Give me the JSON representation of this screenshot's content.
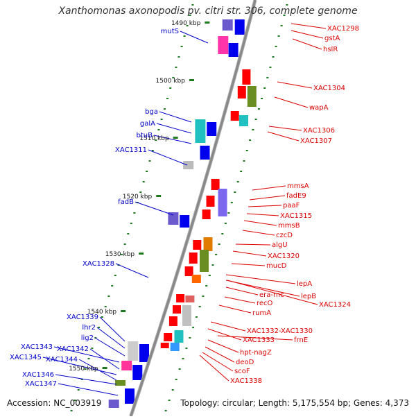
{
  "title": "Xanthomonas axonopodis pv. citri str. 306, complete genome",
  "footer": {
    "accession": "Accession: NC_003919",
    "topology": "Topology: circular; Length: 5,175,554 bp; Genes: 4,373"
  },
  "colors": {
    "backbone": "#888888",
    "tick": "#1f7a1f",
    "left_label": "#0000cc",
    "right_label": "#dd0000",
    "right_gene": "#ff0000",
    "left_gene": "#0000ee"
  },
  "kbp_ticks": [
    "1490 kbp",
    "1500 kbp",
    "1510 kbp",
    "1520 kbp",
    "1530 kbp",
    "1540 kbp",
    "1550 kbp"
  ],
  "left_genes": [
    "mutS",
    "bga",
    "galA",
    "btuB",
    "XAC1311",
    "fadB",
    "XAC1328",
    "XAC1339",
    "lhr2",
    "lig2",
    "XAC1343",
    "XAC1342",
    "XAC1345",
    "XAC1344",
    "XAC1346",
    "XAC1347"
  ],
  "right_genes": [
    "XAC1298",
    "gstA",
    "hslR",
    "XAC1304",
    "wapA",
    "XAC1306",
    "XAC1307",
    "mmsA",
    "fadE9",
    "paaF",
    "XAC1315",
    "mmsB",
    "czcD",
    "algU",
    "XAC1320",
    "mucD",
    "lepA",
    "lepB",
    "era-rnc",
    "XAC1324",
    "recO",
    "rumA",
    "XAC1332-XAC1330",
    "XAC1333",
    "frnE",
    "hpt-nagZ",
    "deoD",
    "scoF",
    "XAC1338"
  ]
}
